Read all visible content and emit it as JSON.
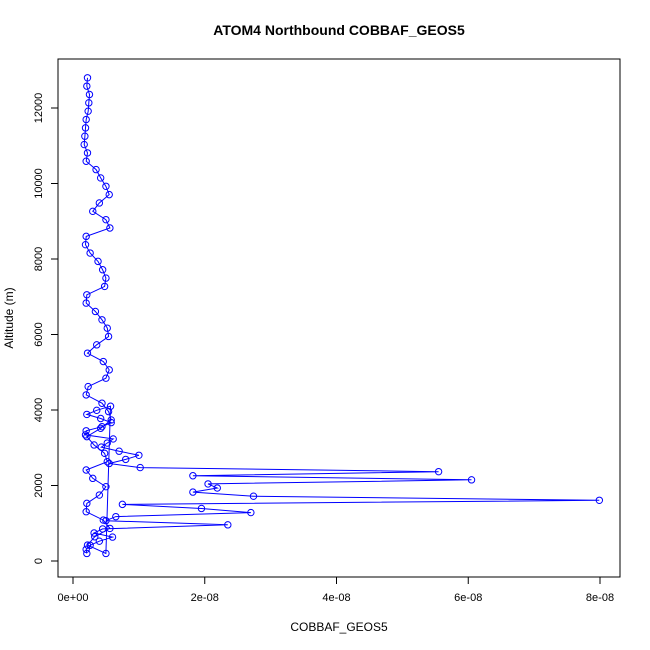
{
  "chart_data": {
    "type": "line",
    "title": "ATOM4 Northbound COBBAF_GEOS5",
    "xlabel": "COBBAF_GEOS5",
    "ylabel": "Altitude (m)",
    "xlim": [
      0,
      8e-08
    ],
    "ylim": [
      0,
      12800
    ],
    "x_ticks": [
      0,
      2e-08,
      4e-08,
      6e-08,
      8e-08
    ],
    "x_tick_labels": [
      "0e+00",
      "2e-08",
      "4e-08",
      "6e-08",
      "8e-08"
    ],
    "y_ticks": [
      0,
      2000,
      4000,
      6000,
      8000,
      10000,
      12000
    ],
    "y_tick_labels": [
      "0",
      "2000",
      "4000",
      "6000",
      "8000",
      "10000",
      "12000"
    ],
    "grid": false,
    "series_color": "#0000ff",
    "marker": "open-circle",
    "series": [
      {
        "x": [
          2.2e-09,
          2.1e-09,
          2.5e-09,
          2.4e-09,
          2.3e-09,
          2e-09,
          1.9e-09,
          1.8e-09,
          1.7e-09,
          2.2e-09,
          2e-09,
          3.5e-09,
          4.2e-09,
          5e-09,
          5.5e-09,
          4e-09,
          3e-09,
          5e-09,
          5.6e-09,
          2e-09,
          1.9e-09,
          2.6e-09,
          3.8e-09,
          4.5e-09,
          5e-09,
          4.8e-09,
          2.1e-09,
          2e-09,
          3.4e-09,
          4.4e-09,
          5.2e-09,
          5.4e-09,
          3.6e-09,
          2.2e-09,
          4.6e-09,
          5.5e-09,
          5e-09,
          2.3e-09,
          2e-09,
          4.4e-09,
          5.4e-09,
          5.8e-09,
          4.2e-09,
          2.1e-09,
          3.2e-09,
          4.8e-09,
          5.2e-09,
          2e-09,
          3e-09,
          5e-09,
          4e-09,
          2.1e-09,
          2e-09,
          4.6e-09,
          5.6e-09,
          3.3e-09,
          2.2e-09,
          5e-09,
          5.7e-09,
          3.6e-09,
          2.1e-09,
          4.2e-09,
          5.8e-09,
          4.4e-09,
          2e-09,
          1.9e-09,
          6.1e-09,
          5.2e-09,
          4.3e-09,
          7e-09,
          1e-08,
          8e-09,
          5.5e-09,
          1.02e-08,
          5.55e-08,
          1.82e-08,
          6.05e-08,
          2.05e-08,
          2.19e-08,
          1.82e-08,
          2.74e-08,
          7.99e-08,
          7.5e-09,
          1.95e-08,
          2.7e-08,
          6.5e-09,
          5e-09,
          2.35e-08,
          4.5e-09,
          3.2e-09,
          6e-09,
          4e-09,
          2.6e-09,
          2e-09,
          2.1e-09
        ]
      }
    ]
  }
}
